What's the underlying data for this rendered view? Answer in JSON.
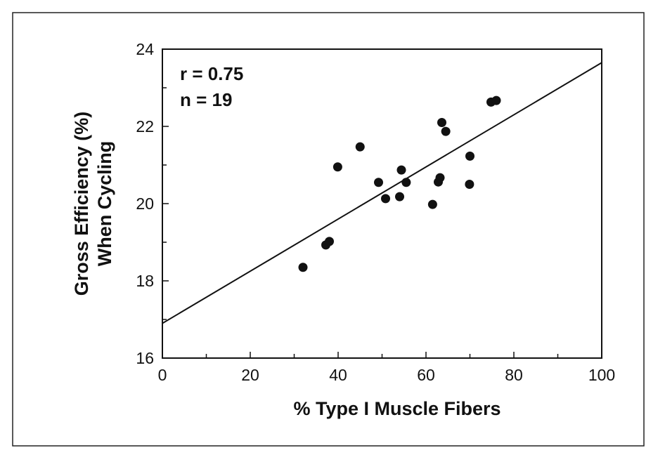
{
  "chart_data": {
    "type": "scatter",
    "title": "",
    "xlabel": "% Type I Muscle Fibers",
    "ylabel_lines": [
      "Gross Efficiency (%)",
      "When Cycling"
    ],
    "xlim": [
      0,
      100
    ],
    "ylim": [
      16,
      24
    ],
    "x_ticks": [
      0,
      20,
      40,
      60,
      80,
      100
    ],
    "y_ticks": [
      16,
      18,
      20,
      22,
      24
    ],
    "annotations": [
      "r = 0.75",
      "n = 19"
    ],
    "grid": false,
    "series": [
      {
        "points": [
          {
            "x": 32.0,
            "y": 18.35
          },
          {
            "x": 37.2,
            "y": 18.93
          },
          {
            "x": 38.0,
            "y": 19.02
          },
          {
            "x": 39.9,
            "y": 20.95
          },
          {
            "x": 45.0,
            "y": 21.47
          },
          {
            "x": 49.2,
            "y": 20.55
          },
          {
            "x": 50.8,
            "y": 20.13
          },
          {
            "x": 54.0,
            "y": 20.18
          },
          {
            "x": 54.4,
            "y": 20.87
          },
          {
            "x": 55.5,
            "y": 20.55
          },
          {
            "x": 61.5,
            "y": 19.98
          },
          {
            "x": 62.8,
            "y": 20.56
          },
          {
            "x": 63.2,
            "y": 20.67
          },
          {
            "x": 63.6,
            "y": 22.1
          },
          {
            "x": 64.5,
            "y": 21.87
          },
          {
            "x": 69.9,
            "y": 20.5
          },
          {
            "x": 70.0,
            "y": 21.23
          },
          {
            "x": 74.8,
            "y": 22.63
          },
          {
            "x": 76.0,
            "y": 22.67
          }
        ]
      }
    ],
    "regression_line": {
      "x": [
        0,
        100
      ],
      "y": [
        16.9,
        23.65
      ]
    },
    "colors": {
      "points": "#111111",
      "line": "#111111",
      "axes": "#111111"
    }
  }
}
